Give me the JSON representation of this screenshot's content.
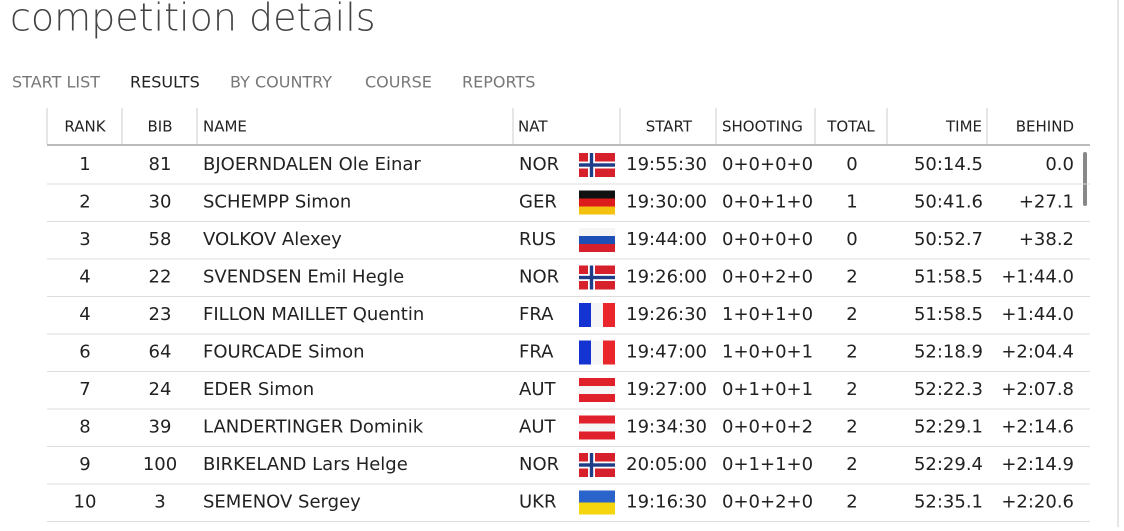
{
  "header": {
    "title": "competition details"
  },
  "tabs": [
    "START LIST",
    "RESULTS",
    "BY COUNTRY",
    "COURSE",
    "REPORTS"
  ],
  "table": {
    "columns": [
      "RANK",
      "BIB",
      "NAME",
      "NAT",
      "START",
      "SHOOTING",
      "TOTAL",
      "TIME",
      "BEHIND"
    ],
    "rows": [
      [
        1,
        81,
        "BJOERNDALEN Ole Einar",
        "NOR",
        "19:55:30",
        "0+0+0+0",
        0,
        "50:14.5",
        "0.0"
      ],
      [
        2,
        30,
        "SCHEMPP Simon",
        "GER",
        "19:30:00",
        "0+0+1+0",
        1,
        "50:41.6",
        "+27.1"
      ],
      [
        3,
        58,
        "VOLKOV Alexey",
        "RUS",
        "19:44:00",
        "0+0+0+0",
        0,
        "50:52.7",
        "+38.2"
      ],
      [
        4,
        22,
        "SVENDSEN Emil Hegle",
        "NOR",
        "19:26:00",
        "0+0+2+0",
        2,
        "51:58.5",
        "+1:44.0"
      ],
      [
        4,
        23,
        "FILLON MAILLET Quentin",
        "FRA",
        "19:26:30",
        "1+0+1+0",
        2,
        "51:58.5",
        "+1:44.0"
      ],
      [
        6,
        64,
        "FOURCADE Simon",
        "FRA",
        "19:47:00",
        "1+0+0+1",
        2,
        "52:18.9",
        "+2:04.4"
      ],
      [
        7,
        24,
        "EDER Simon",
        "AUT",
        "19:27:00",
        "0+1+0+1",
        2,
        "52:22.3",
        "+2:07.8"
      ],
      [
        8,
        39,
        "LANDERTINGER Dominik",
        "AUT",
        "19:34:30",
        "0+0+0+2",
        2,
        "52:29.1",
        "+2:14.6"
      ],
      [
        9,
        100,
        "BIRKELAND Lars Helge",
        "NOR",
        "20:05:00",
        "0+1+1+0",
        2,
        "52:29.4",
        "+2:14.9"
      ],
      [
        10,
        3,
        "SEMENOV Sergey",
        "UKR",
        "19:16:30",
        "0+0+2+0",
        2,
        "52:35.1",
        "+2:20.6"
      ]
    ]
  }
}
